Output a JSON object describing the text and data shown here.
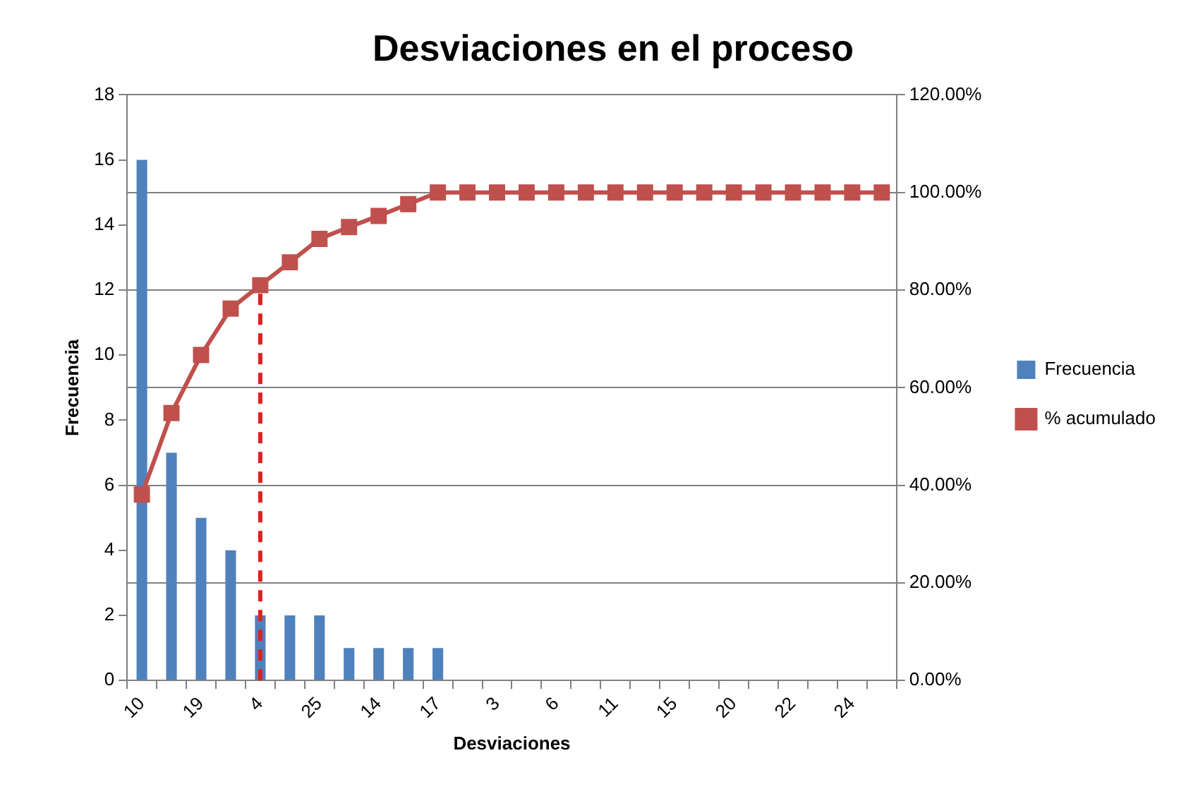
{
  "chart_data": {
    "type": "bar",
    "title": "Desviaciones en el proceso",
    "xlabel": "Desviaciones",
    "ylabel": "Frecuencia",
    "categories": [
      "10",
      null,
      "19",
      null,
      "4",
      null,
      "25",
      null,
      "14",
      null,
      "17",
      null,
      "3",
      null,
      "6",
      null,
      "11",
      null,
      "15",
      null,
      "20",
      null,
      "22",
      null,
      "24",
      null
    ],
    "series": [
      {
        "name": "Frecuencia",
        "color": "#4f81bd",
        "values": [
          16,
          7,
          5,
          4,
          2,
          2,
          2,
          1,
          1,
          1,
          1,
          0,
          0,
          0,
          0,
          0,
          0,
          0,
          0,
          0,
          0,
          0,
          0,
          0,
          0,
          0
        ]
      },
      {
        "name": "% acumulado",
        "type": "line",
        "axis": "y2",
        "color": "#c0504d",
        "values": [
          38.1,
          54.8,
          66.7,
          76.2,
          81.0,
          85.7,
          90.5,
          92.9,
          95.2,
          97.6,
          100,
          100,
          100,
          100,
          100,
          100,
          100,
          100,
          100,
          100,
          100,
          100,
          100,
          100,
          100,
          100
        ]
      }
    ],
    "ylim": [
      0,
      18
    ],
    "yticks": [
      0,
      2,
      4,
      6,
      8,
      10,
      12,
      14,
      16,
      18
    ],
    "y2lim": [
      0,
      120
    ],
    "y2ticks": [
      {
        "value": 0,
        "label": "0.00%"
      },
      {
        "value": 20,
        "label": "20.00%"
      },
      {
        "value": 40,
        "label": "40.00%"
      },
      {
        "value": 60,
        "label": "60.00%"
      },
      {
        "value": 80,
        "label": "80.00%"
      },
      {
        "value": 100,
        "label": "100.00%"
      },
      {
        "value": 120,
        "label": "120.00%"
      }
    ],
    "ref_lines": [
      {
        "axis": "x",
        "value": "4",
        "color": "#e02020",
        "line_style": "dashed"
      }
    ],
    "grid": "y2",
    "legend": "right",
    "marker": "square",
    "line_style": "solid"
  }
}
